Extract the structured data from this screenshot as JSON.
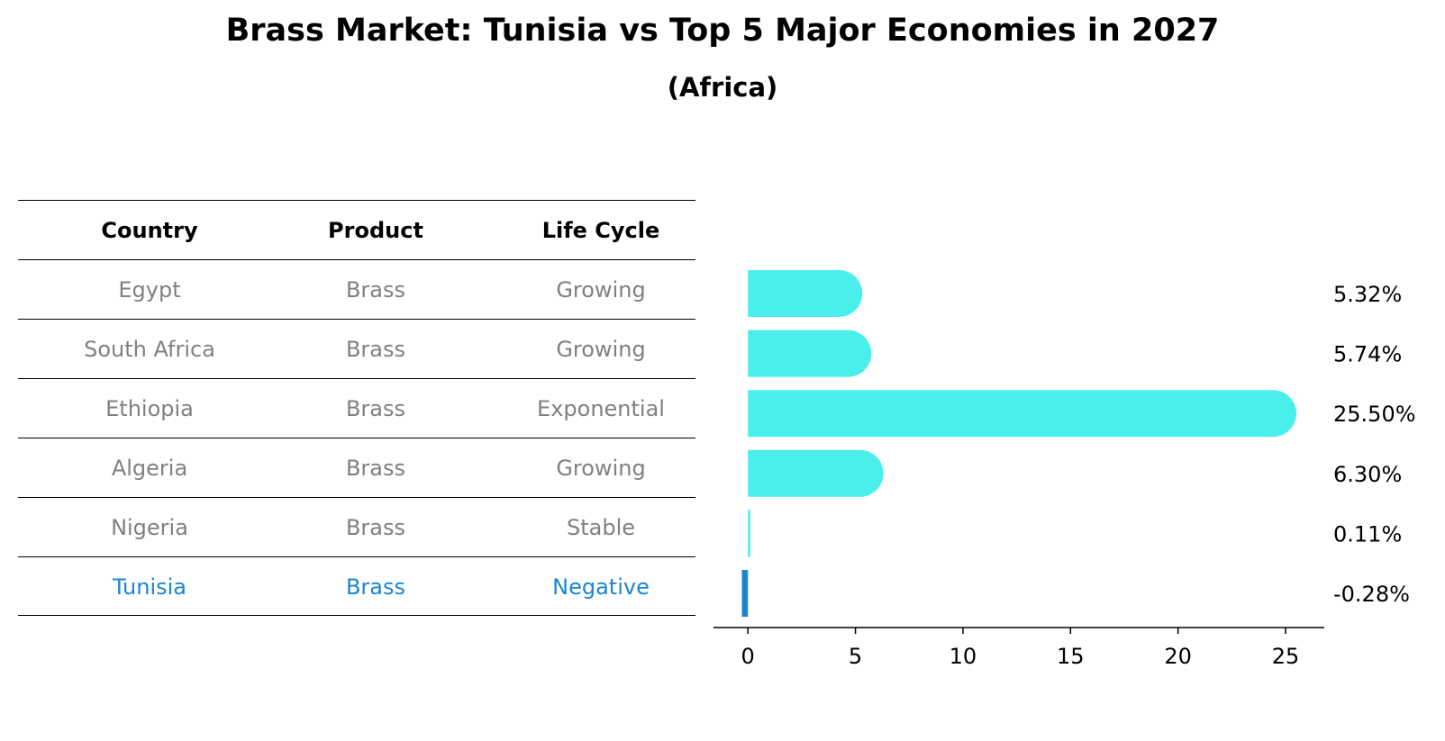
{
  "title": "Brass Market: Tunisia vs Top 5 Major Economies in 2027",
  "subtitle": "(Africa)",
  "table": {
    "headers": [
      "Country",
      "Product",
      "Life Cycle"
    ],
    "rows": [
      {
        "country": "Egypt",
        "product": "Brass",
        "life_cycle": "Growing"
      },
      {
        "country": "South Africa",
        "product": "Brass",
        "life_cycle": "Growing"
      },
      {
        "country": "Ethiopia",
        "product": "Brass",
        "life_cycle": "Exponential"
      },
      {
        "country": "Algeria",
        "product": "Brass",
        "life_cycle": "Growing"
      },
      {
        "country": "Nigeria",
        "product": "Brass",
        "life_cycle": "Stable"
      },
      {
        "country": "Tunisia",
        "product": "Brass",
        "life_cycle": "Negative"
      }
    ]
  },
  "chart_data": {
    "type": "bar",
    "orientation": "horizontal",
    "categories": [
      "Egypt",
      "South Africa",
      "Ethiopia",
      "Algeria",
      "Nigeria",
      "Tunisia"
    ],
    "values": [
      5.32,
      5.74,
      25.5,
      6.3,
      0.11,
      -0.28
    ],
    "labels": [
      "5.32%",
      "5.74%",
      "25.50%",
      "6.30%",
      "0.11%",
      "-0.28%"
    ],
    "xticks": [
      0,
      5,
      10,
      15,
      20,
      25
    ],
    "xlim": [
      -1.6,
      26.8
    ],
    "highlight": "Tunisia",
    "colors": {
      "bar": "#4aeeea",
      "highlight": "#1a86d0",
      "text_muted": "#808080"
    }
  }
}
